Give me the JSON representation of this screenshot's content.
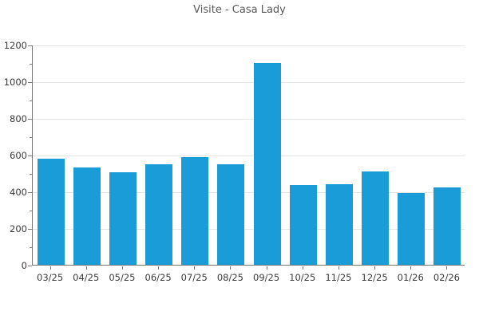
{
  "page": {
    "title": "Visite - Casa Lady"
  },
  "chart_data": {
    "type": "bar",
    "title": "Visite - Casa Lady",
    "categories": [
      "03/25",
      "04/25",
      "05/25",
      "06/25",
      "07/25",
      "08/25",
      "09/25",
      "10/25",
      "11/25",
      "12/25",
      "01/26",
      "02/26"
    ],
    "values": [
      580,
      530,
      505,
      550,
      585,
      550,
      1100,
      435,
      440,
      510,
      390,
      420
    ],
    "xlabel": "",
    "ylabel": "",
    "ylim": [
      0,
      1200
    ],
    "yticks_major": [
      0,
      200,
      400,
      600,
      800,
      1000,
      1200
    ],
    "yticks_minor": [
      100,
      300,
      500,
      700,
      900,
      1100
    ],
    "grid": "horizontal-major-only",
    "legend": "none",
    "colors": {
      "bar": "#1a9cd8",
      "grid": "#e4e4e4",
      "spine": "#767676",
      "tick_label": "#3a3a3a",
      "title": "#595959",
      "background": "#ffffff"
    }
  }
}
